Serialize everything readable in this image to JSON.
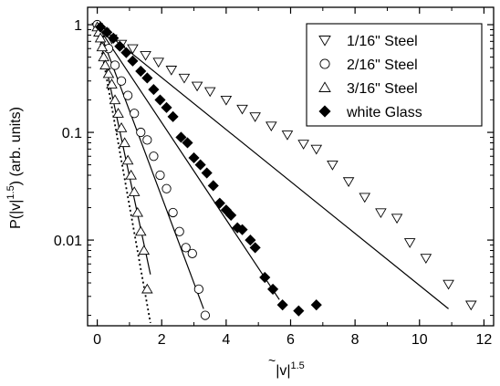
{
  "chart_data": {
    "type": "scatter",
    "title": "",
    "xlabel": {
      "prefix": "|",
      "var": "v",
      "suffix": "|",
      "exp": "1.5"
    },
    "ylabel": {
      "prefix": "P(|",
      "var": "v",
      "suffix": "|",
      "exp": "1.5",
      "close": ")",
      "units": " (arb. units)"
    },
    "xlim": [
      -0.3,
      12.3
    ],
    "ylim": [
      0.0016,
      1.45
    ],
    "yscale": "log",
    "grid": false,
    "legend_position": "top-right",
    "x_ticks": [
      {
        "v": 0,
        "label": "0"
      },
      {
        "v": 2,
        "label": "2"
      },
      {
        "v": 4,
        "label": "4"
      },
      {
        "v": 6,
        "label": "6"
      },
      {
        "v": 8,
        "label": "8"
      },
      {
        "v": 10,
        "label": "10"
      },
      {
        "v": 12,
        "label": "12"
      }
    ],
    "x_minor_step": 1,
    "y_ticks": [
      {
        "v": 1,
        "label": "1"
      },
      {
        "v": 0.1,
        "label": "0.1"
      },
      {
        "v": 0.01,
        "label": "0.01"
      }
    ],
    "series": [
      {
        "name": "1/16\" Steel",
        "marker": "triangle-down",
        "x": [
          0.0,
          0.2,
          0.45,
          0.75,
          1.1,
          1.5,
          1.9,
          2.3,
          2.7,
          3.1,
          3.5,
          4.0,
          4.5,
          4.9,
          5.4,
          5.9,
          6.4,
          6.8,
          7.3,
          7.8,
          8.3,
          8.8,
          9.3,
          9.7,
          10.2,
          10.9,
          11.6
        ],
        "y": [
          0.95,
          0.85,
          0.74,
          0.66,
          0.6,
          0.52,
          0.45,
          0.38,
          0.32,
          0.27,
          0.24,
          0.2,
          0.165,
          0.14,
          0.115,
          0.095,
          0.078,
          0.07,
          0.05,
          0.035,
          0.025,
          0.018,
          0.016,
          0.0095,
          0.0068,
          0.0039,
          0.0025
        ]
      },
      {
        "name": "2/16\" Steel",
        "marker": "circle",
        "x": [
          0.0,
          0.15,
          0.35,
          0.55,
          0.75,
          0.95,
          1.15,
          1.35,
          1.55,
          1.75,
          1.95,
          2.15,
          2.35,
          2.55,
          2.75,
          2.95,
          3.15,
          3.35
        ],
        "y": [
          1.0,
          0.85,
          0.6,
          0.42,
          0.3,
          0.22,
          0.15,
          0.1,
          0.085,
          0.06,
          0.04,
          0.03,
          0.018,
          0.012,
          0.0085,
          0.0075,
          0.0035,
          0.002
        ]
      },
      {
        "name": "3/16\" Steel",
        "marker": "triangle-up",
        "x": [
          0.0,
          0.05,
          0.1,
          0.15,
          0.2,
          0.25,
          0.35,
          0.45,
          0.55,
          0.65,
          0.75,
          0.85,
          0.95,
          1.05,
          1.15,
          1.25,
          1.35,
          1.45,
          1.55
        ],
        "y": [
          0.95,
          0.85,
          0.75,
          0.62,
          0.5,
          0.42,
          0.35,
          0.28,
          0.2,
          0.15,
          0.11,
          0.08,
          0.055,
          0.04,
          0.028,
          0.018,
          0.012,
          0.008,
          0.0035
        ]
      },
      {
        "name": "white Glass",
        "marker": "diamond-filled",
        "x": [
          0.1,
          0.3,
          0.5,
          0.7,
          0.9,
          1.1,
          1.35,
          1.55,
          1.75,
          1.95,
          2.15,
          2.35,
          2.6,
          2.8,
          3.0,
          3.2,
          3.4,
          3.6,
          3.8,
          4.0,
          4.15,
          4.35,
          4.5,
          4.75,
          4.9,
          5.2,
          5.45,
          5.75,
          6.25,
          6.8
        ],
        "y": [
          0.95,
          0.85,
          0.75,
          0.63,
          0.55,
          0.46,
          0.37,
          0.32,
          0.25,
          0.2,
          0.17,
          0.14,
          0.09,
          0.08,
          0.058,
          0.05,
          0.042,
          0.032,
          0.022,
          0.019,
          0.017,
          0.013,
          0.0125,
          0.01,
          0.0085,
          0.0045,
          0.0035,
          0.0025,
          0.0022,
          0.0025
        ]
      }
    ],
    "fit_lines": [
      {
        "style": "solid",
        "x": [
          0.0,
          10.9
        ],
        "y": [
          0.98,
          0.0023
        ]
      },
      {
        "style": "solid",
        "x": [
          0.0,
          3.3
        ],
        "y": [
          1.0,
          0.0023
        ]
      },
      {
        "style": "solid",
        "x": [
          0.0,
          5.65
        ],
        "y": [
          0.98,
          0.0028
        ]
      },
      {
        "style": "solid",
        "x": [
          0.0,
          1.65
        ],
        "y": [
          0.98,
          0.0048
        ]
      },
      {
        "style": "dotted",
        "x": [
          0.0,
          1.65
        ],
        "y": [
          0.98,
          0.0017
        ]
      }
    ]
  }
}
